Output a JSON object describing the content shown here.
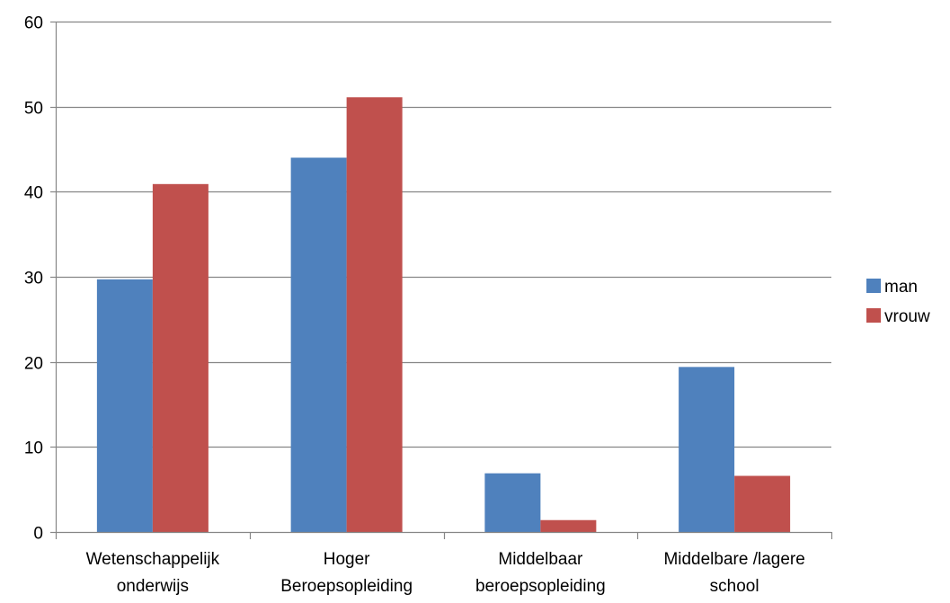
{
  "chart_data": {
    "type": "bar",
    "categories": [
      [
        "Wetenschappelijk",
        "onderwijs"
      ],
      [
        "Hoger",
        "Beroepsopleiding"
      ],
      [
        "Middelbaar",
        "beroepsopleiding"
      ],
      [
        "Middelbare /lagere",
        "school"
      ]
    ],
    "series": [
      {
        "name": "man",
        "color": "#4F81BD",
        "values": [
          29.7,
          44.0,
          6.9,
          19.4
        ]
      },
      {
        "name": "vrouw",
        "color": "#C0504D",
        "values": [
          40.9,
          51.1,
          1.4,
          6.6
        ]
      }
    ],
    "ylim": [
      0,
      60
    ],
    "yticks": [
      0,
      10,
      20,
      30,
      40,
      50,
      60
    ],
    "grid": true,
    "legend": "right",
    "gridline_color": "#868686",
    "axis_color": "#868686"
  }
}
